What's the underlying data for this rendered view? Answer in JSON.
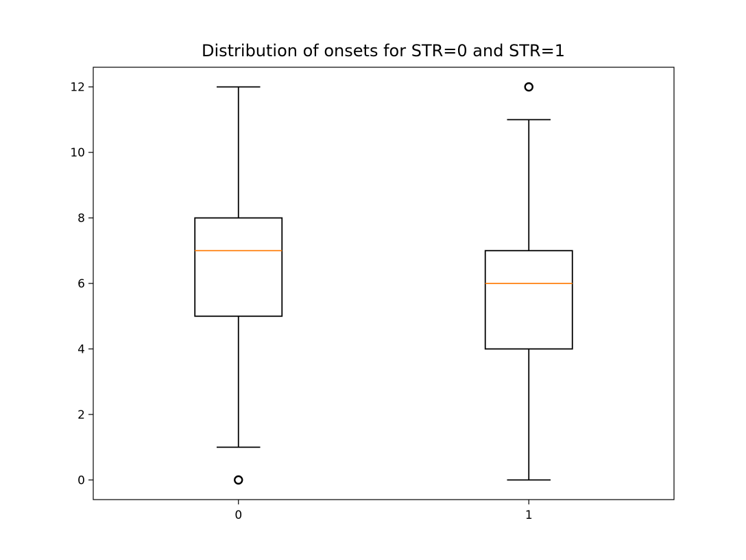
{
  "chart_data": {
    "type": "boxplot",
    "title": "Distribution of onsets for STR=0 and STR=1",
    "xlabel": "",
    "ylabel": "",
    "categories": [
      "0",
      "1"
    ],
    "boxes": [
      {
        "category": "0",
        "whisker_low": 1,
        "q1": 5,
        "median": 7,
        "q3": 8,
        "whisker_high": 12,
        "outliers": [
          0
        ]
      },
      {
        "category": "1",
        "whisker_low": 0,
        "q1": 4,
        "median": 6,
        "q3": 7,
        "whisker_high": 11,
        "outliers": [
          12
        ]
      }
    ],
    "yticks": [
      0,
      2,
      4,
      6,
      8,
      10,
      12
    ],
    "ytick_labels": [
      "0",
      "2",
      "4",
      "6",
      "8",
      "10",
      "12"
    ],
    "ylim": [
      -0.6,
      12.6
    ],
    "grid": false,
    "colors": {
      "box": "#000000",
      "median": "#ff7f0e",
      "axes": "#000000"
    }
  }
}
